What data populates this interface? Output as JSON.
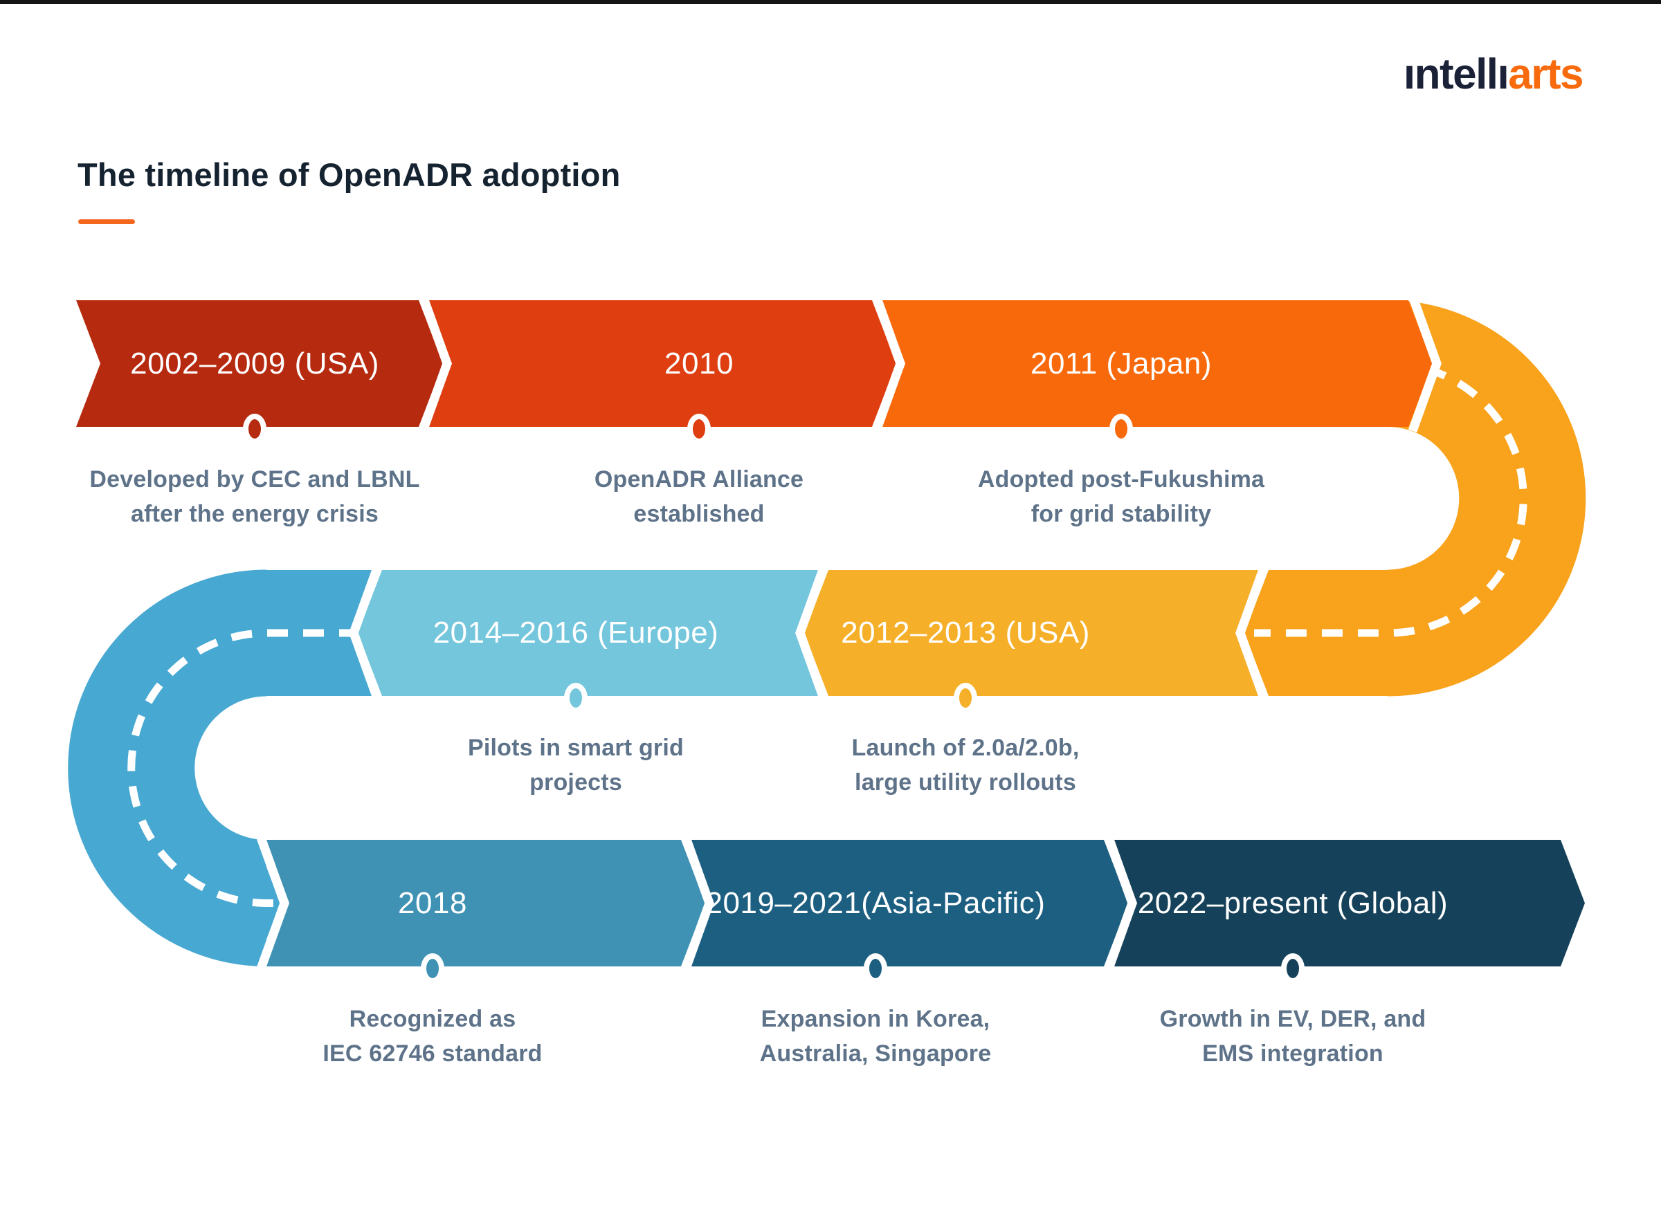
{
  "page": {
    "background": "#FFFFFF",
    "top_border_color": "#141414"
  },
  "logo": {
    "text_dark": "ıntellı",
    "text_accent": "arts",
    "color_dark": "#1B2136",
    "color_accent": "#F76A0D"
  },
  "header": {
    "title": "The timeline of OpenADR adoption",
    "title_color": "#15222F",
    "underline_color": "#F4671F"
  },
  "timeline": {
    "curve_right_color": "#F9A21C",
    "curve_left_color": "#47A8D2",
    "dash_color": "#FFFFFF",
    "description_color": "#5E7389",
    "segments": [
      {
        "label": "2002–2009 (USA)",
        "description": "Developed by CEC and LBNL\nafter the energy crisis",
        "color": "#B62B10"
      },
      {
        "label": "2010",
        "description": "OpenADR Alliance\nestablished",
        "color": "#DE3E10"
      },
      {
        "label": "2011 (Japan)",
        "description": "Adopted post-Fukushima\nfor grid stability",
        "color": "#F8690B"
      },
      {
        "label": "2012–2013 (USA)",
        "description": "Launch of 2.0a/2.0b,\nlarge utility rollouts",
        "color": "#F6AF28"
      },
      {
        "label": "2014–2016 (Europe)",
        "description": "Pilots in smart grid\nprojects",
        "color": "#74C6DC"
      },
      {
        "label": "2018",
        "description": "Recognized as\nIEC 62746 standard",
        "color": "#3F92B4"
      },
      {
        "label": "2019–2021(Asia-Pacific)",
        "description": "Expansion in Korea,\nAustralia, Singapore",
        "color": "#1D5F80"
      },
      {
        "label": "2022–present (Global)",
        "description": "Growth in EV, DER, and\nEMS integration",
        "color": "#15425A"
      }
    ]
  }
}
